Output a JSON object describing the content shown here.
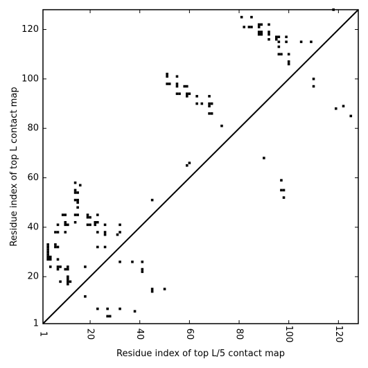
{
  "chart_data": {
    "type": "scatter",
    "title": "",
    "xlabel": "Residue index of top L/5 contact map",
    "ylabel": "Residue index of top L contact map",
    "xlim": [
      1,
      128
    ],
    "ylim": [
      1,
      128
    ],
    "x_ticks": [
      1,
      20,
      40,
      60,
      80,
      100,
      120
    ],
    "y_ticks": [
      1,
      20,
      40,
      60,
      80,
      100,
      120
    ],
    "grid": false,
    "legend": "none",
    "marker": "square",
    "marker_color": "#000000",
    "diagonal": true,
    "points": [
      [
        3,
        33
      ],
      [
        3,
        32
      ],
      [
        3,
        31
      ],
      [
        3,
        30
      ],
      [
        3,
        29
      ],
      [
        3,
        28
      ],
      [
        3,
        27
      ],
      [
        4,
        28
      ],
      [
        4,
        27
      ],
      [
        4,
        24
      ],
      [
        6,
        33
      ],
      [
        6,
        32
      ],
      [
        7,
        32
      ],
      [
        6,
        38
      ],
      [
        7,
        38
      ],
      [
        7,
        41
      ],
      [
        7,
        27
      ],
      [
        7,
        24
      ],
      [
        7,
        23
      ],
      [
        8,
        24
      ],
      [
        8,
        18
      ],
      [
        9,
        45
      ],
      [
        10,
        45
      ],
      [
        10,
        42
      ],
      [
        10,
        41
      ],
      [
        11,
        41
      ],
      [
        10,
        38
      ],
      [
        10,
        23
      ],
      [
        11,
        24
      ],
      [
        11,
        23
      ],
      [
        11,
        20
      ],
      [
        11,
        19
      ],
      [
        11,
        18
      ],
      [
        11,
        17
      ],
      [
        12,
        18
      ],
      [
        14,
        58
      ],
      [
        14,
        55
      ],
      [
        14,
        54
      ],
      [
        15,
        54
      ],
      [
        16,
        57
      ],
      [
        14,
        51
      ],
      [
        15,
        51
      ],
      [
        15,
        50
      ],
      [
        15,
        48
      ],
      [
        14,
        45
      ],
      [
        15,
        45
      ],
      [
        14,
        42
      ],
      [
        18,
        24
      ],
      [
        18,
        12
      ],
      [
        19,
        45
      ],
      [
        19,
        44
      ],
      [
        20,
        44
      ],
      [
        19,
        41
      ],
      [
        20,
        41
      ],
      [
        22,
        42
      ],
      [
        23,
        42
      ],
      [
        22,
        41
      ],
      [
        23,
        45
      ],
      [
        23,
        38
      ],
      [
        23,
        32
      ],
      [
        23,
        7
      ],
      [
        26,
        41
      ],
      [
        26,
        38
      ],
      [
        26,
        37
      ],
      [
        26,
        32
      ],
      [
        27,
        7
      ],
      [
        27,
        4
      ],
      [
        28,
        4
      ],
      [
        31,
        37
      ],
      [
        32,
        41
      ],
      [
        32,
        38
      ],
      [
        32,
        26
      ],
      [
        32,
        7
      ],
      [
        37,
        26
      ],
      [
        38,
        6
      ],
      [
        41,
        26
      ],
      [
        41,
        23
      ],
      [
        41,
        22
      ],
      [
        45,
        51
      ],
      [
        45,
        15
      ],
      [
        45,
        14
      ],
      [
        50,
        15
      ],
      [
        51,
        102
      ],
      [
        51,
        101
      ],
      [
        51,
        98
      ],
      [
        52,
        98
      ],
      [
        55,
        101
      ],
      [
        55,
        98
      ],
      [
        55,
        97
      ],
      [
        55,
        94
      ],
      [
        56,
        94
      ],
      [
        58,
        97
      ],
      [
        59,
        97
      ],
      [
        59,
        94
      ],
      [
        60,
        94
      ],
      [
        59,
        93
      ],
      [
        59,
        65
      ],
      [
        60,
        66
      ],
      [
        63,
        93
      ],
      [
        63,
        90
      ],
      [
        65,
        90
      ],
      [
        68,
        93
      ],
      [
        68,
        90
      ],
      [
        69,
        90
      ],
      [
        68,
        89
      ],
      [
        68,
        86
      ],
      [
        69,
        86
      ],
      [
        73,
        81
      ],
      [
        81,
        125
      ],
      [
        82,
        121
      ],
      [
        84,
        121
      ],
      [
        85,
        121
      ],
      [
        85,
        125
      ],
      [
        88,
        122
      ],
      [
        89,
        122
      ],
      [
        88,
        121
      ],
      [
        88,
        119
      ],
      [
        89,
        119
      ],
      [
        88,
        118
      ],
      [
        89,
        118
      ],
      [
        90,
        68
      ],
      [
        92,
        122
      ],
      [
        92,
        119
      ],
      [
        92,
        118
      ],
      [
        92,
        116
      ],
      [
        95,
        117
      ],
      [
        96,
        117
      ],
      [
        95,
        116
      ],
      [
        96,
        115
      ],
      [
        96,
        113
      ],
      [
        96,
        110
      ],
      [
        97,
        110
      ],
      [
        97,
        59
      ],
      [
        97,
        55
      ],
      [
        98,
        55
      ],
      [
        98,
        52
      ],
      [
        99,
        117
      ],
      [
        99,
        115
      ],
      [
        100,
        110
      ],
      [
        100,
        107
      ],
      [
        100,
        106
      ],
      [
        105,
        115
      ],
      [
        109,
        115
      ],
      [
        110,
        100
      ],
      [
        110,
        97
      ],
      [
        118,
        128
      ],
      [
        119,
        88
      ],
      [
        122,
        89
      ],
      [
        125,
        85
      ]
    ]
  }
}
